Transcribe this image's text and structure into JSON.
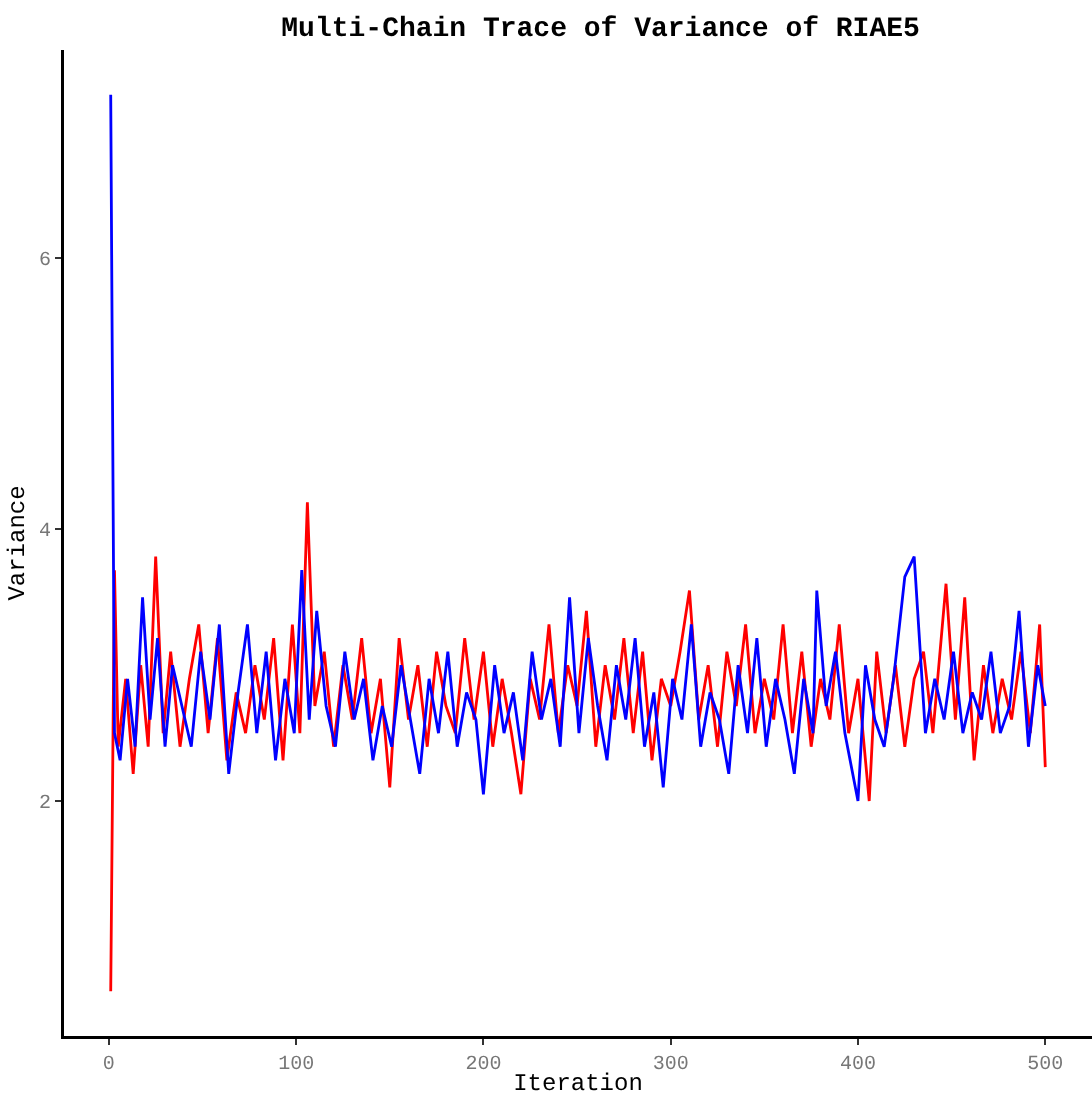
{
  "chart_data": {
    "type": "line",
    "title": "Multi-Chain Trace of Variance of RIAE5",
    "xlabel": "Iteration",
    "ylabel": "Variance",
    "xlim": [
      -23.95,
      524.95
    ],
    "xticks": [
      0,
      100,
      200,
      300,
      400,
      500
    ],
    "ylim": [
      0.27,
      7.53
    ],
    "yticks": [
      2,
      4,
      6
    ],
    "marker": "none",
    "line_style": "solid",
    "series": [
      {
        "color": "#ff0000",
        "x": [
          1,
          3,
          5,
          9,
          13,
          17,
          21,
          25,
          29,
          33,
          38,
          43,
          48,
          53,
          58,
          63,
          68,
          73,
          78,
          83,
          88,
          93,
          98,
          102,
          106,
          110,
          115,
          120,
          125,
          130,
          135,
          140,
          145,
          150,
          155,
          160,
          165,
          170,
          175,
          180,
          185,
          190,
          195,
          200,
          205,
          210,
          215,
          220,
          225,
          230,
          235,
          240,
          245,
          250,
          255,
          260,
          265,
          270,
          275,
          280,
          285,
          290,
          295,
          300,
          305,
          310,
          315,
          320,
          325,
          330,
          335,
          340,
          345,
          350,
          355,
          360,
          365,
          370,
          375,
          380,
          385,
          390,
          395,
          400,
          406,
          410,
          415,
          420,
          425,
          430,
          435,
          440,
          447,
          452,
          457,
          462,
          467,
          472,
          477,
          482,
          487,
          492,
          497,
          500
        ],
        "values": [
          0.6,
          3.7,
          2.4,
          2.9,
          2.2,
          3.0,
          2.4,
          3.8,
          2.5,
          3.1,
          2.4,
          2.9,
          3.3,
          2.5,
          3.2,
          2.3,
          2.8,
          2.5,
          3.0,
          2.6,
          3.2,
          2.3,
          3.3,
          2.5,
          4.2,
          2.7,
          3.1,
          2.4,
          3.0,
          2.6,
          3.2,
          2.5,
          2.9,
          2.1,
          3.2,
          2.6,
          3.0,
          2.4,
          3.1,
          2.7,
          2.5,
          3.2,
          2.6,
          3.1,
          2.4,
          2.9,
          2.5,
          2.05,
          2.9,
          2.6,
          3.3,
          2.5,
          3.0,
          2.7,
          3.4,
          2.4,
          3.0,
          2.6,
          3.2,
          2.5,
          3.1,
          2.3,
          2.9,
          2.7,
          3.1,
          3.55,
          2.6,
          3.0,
          2.4,
          3.1,
          2.7,
          3.3,
          2.5,
          2.9,
          2.6,
          3.3,
          2.5,
          3.1,
          2.4,
          2.9,
          2.6,
          3.3,
          2.5,
          2.9,
          2.0,
          3.1,
          2.5,
          3.0,
          2.4,
          2.9,
          3.1,
          2.5,
          3.6,
          2.6,
          3.5,
          2.3,
          3.0,
          2.5,
          2.9,
          2.6,
          3.1,
          2.5,
          3.3,
          2.25
        ]
      },
      {
        "color": "#0000ff",
        "x": [
          1,
          3,
          6,
          10,
          14,
          18,
          22,
          26,
          30,
          34,
          39,
          44,
          49,
          54,
          59,
          64,
          69,
          74,
          79,
          84,
          89,
          94,
          99,
          103,
          107,
          111,
          116,
          121,
          126,
          131,
          136,
          141,
          146,
          151,
          156,
          161,
          166,
          171,
          176,
          181,
          186,
          191,
          196,
          200,
          206,
          211,
          216,
          221,
          226,
          231,
          236,
          241,
          246,
          251,
          256,
          261,
          266,
          271,
          276,
          281,
          286,
          291,
          296,
          301,
          306,
          311,
          316,
          321,
          326,
          331,
          336,
          341,
          346,
          351,
          356,
          361,
          366,
          371,
          376,
          378,
          383,
          388,
          393,
          400,
          404,
          409,
          414,
          419,
          425,
          430,
          436,
          441,
          446,
          451,
          456,
          461,
          466,
          471,
          476,
          481,
          486,
          491,
          496,
          500
        ],
        "values": [
          7.2,
          2.5,
          2.3,
          2.9,
          2.4,
          3.5,
          2.6,
          3.2,
          2.4,
          3.0,
          2.7,
          2.4,
          3.1,
          2.6,
          3.3,
          2.2,
          2.8,
          3.3,
          2.5,
          3.1,
          2.3,
          2.9,
          2.5,
          3.7,
          2.6,
          3.4,
          2.7,
          2.4,
          3.1,
          2.6,
          2.9,
          2.3,
          2.7,
          2.4,
          3.0,
          2.6,
          2.2,
          2.9,
          2.5,
          3.1,
          2.4,
          2.8,
          2.6,
          2.05,
          3.0,
          2.5,
          2.8,
          2.3,
          3.1,
          2.6,
          2.9,
          2.4,
          3.5,
          2.5,
          3.2,
          2.7,
          2.3,
          3.0,
          2.6,
          3.2,
          2.4,
          2.8,
          2.1,
          2.9,
          2.6,
          3.3,
          2.4,
          2.8,
          2.6,
          2.2,
          3.0,
          2.5,
          3.2,
          2.4,
          2.9,
          2.6,
          2.2,
          2.9,
          2.5,
          3.55,
          2.7,
          3.1,
          2.5,
          2.0,
          3.0,
          2.6,
          2.4,
          2.9,
          3.65,
          3.8,
          2.5,
          2.9,
          2.6,
          3.1,
          2.5,
          2.8,
          2.6,
          3.1,
          2.5,
          2.7,
          3.4,
          2.4,
          3.0,
          2.7
        ]
      }
    ]
  }
}
